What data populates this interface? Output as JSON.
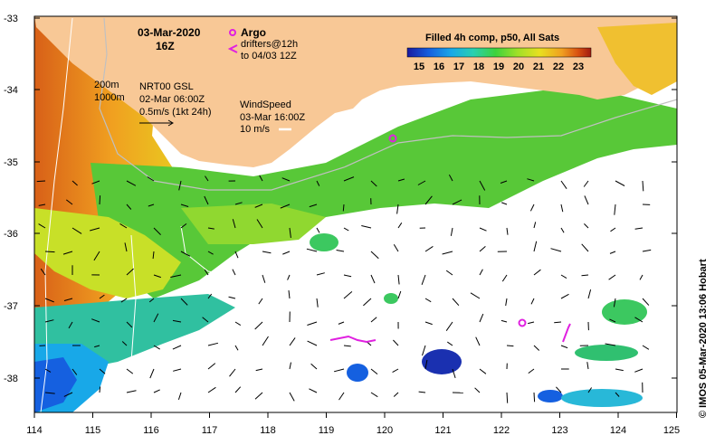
{
  "map": {
    "date_title": "03-Mar-2020",
    "time_title": "16Z",
    "argo_label": "Argo",
    "drifter_label_1": "drifters@12h",
    "drifter_label_2": "to 04/03 12Z",
    "product_title": "Filled 4h comp, p50, All Sats",
    "colorbar": {
      "ticks": [
        "15",
        "16",
        "17",
        "18",
        "19",
        "20",
        "21",
        "22",
        "23"
      ],
      "colors": [
        "#1a1aa0",
        "#1560e0",
        "#18a8e8",
        "#28d0b0",
        "#3cd23c",
        "#a0e028",
        "#e8e020",
        "#f0a020",
        "#d85010",
        "#a01a10"
      ]
    },
    "contour_label_200": "200m",
    "contour_label_1000": "1000m",
    "nrt_label": "NRT00 GSL",
    "nrt_date": "02-Mar 06:00Z",
    "current_scale": "0.5m/s (1kt 24h)",
    "wind_label": "WindSpeed",
    "wind_date": "03-Mar 16:00Z",
    "wind_scale": "10 m/s",
    "credit": "© IMOS 05-Mar-2020 13:06 Hobart",
    "x_ticks": [
      "114",
      "115",
      "116",
      "117",
      "118",
      "119",
      "120",
      "121",
      "122",
      "123",
      "124",
      "125"
    ],
    "y_ticks": [
      "-33",
      "-34",
      "-35",
      "-36",
      "-37",
      "-38"
    ],
    "colors": {
      "land": "#f8c896",
      "ocean_missing": "#ffffff",
      "argo": "#e020e0",
      "drifter": "#e020e0"
    }
  }
}
